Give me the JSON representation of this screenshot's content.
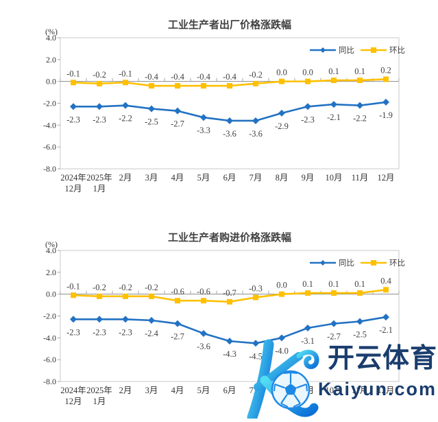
{
  "style": {
    "series_tongbi_color": "#2272C3",
    "series_huanbi_color": "#FFC000",
    "text_color": "#404040",
    "axis_color": "#A6A6A6",
    "zero_line_color": "#8C8C8C",
    "border_color": "#C9C9C9"
  },
  "watermark": {
    "brand_cn": "开云体育",
    "brand_domain": "Kaiyun.com",
    "navy": "#1A3D6D",
    "logo_cyan_light": "#53DDF2",
    "logo_blue_dark": "#0B6FD8",
    "ball_outline": "#1E88E5"
  },
  "chart_data": [
    {
      "type": "line",
      "title": "工业生产者出厂价格涨跌幅",
      "unit_label": "(%)",
      "xlabel": "",
      "ylabel": "%",
      "ylim": [
        -8.0,
        4.0
      ],
      "yticks": [
        "4.0",
        "2.0",
        "0.0",
        "-2.0",
        "-4.0",
        "-6.0",
        "-8.0"
      ],
      "grid": false,
      "legend_position": "top-right-inside",
      "categories": [
        "2024年12月",
        "2025年1月",
        "2月",
        "3月",
        "4月",
        "5月",
        "6月",
        "7月",
        "8月",
        "9月",
        "10月",
        "11月",
        "12月"
      ],
      "xtick_lines": [
        [
          "2024年",
          "12月"
        ],
        [
          "2025年",
          "1月"
        ],
        [
          "2月"
        ],
        [
          "3月"
        ],
        [
          "4月"
        ],
        [
          "5月"
        ],
        [
          "6月"
        ],
        [
          "7月"
        ],
        [
          "8月"
        ],
        [
          "9月"
        ],
        [
          "10月"
        ],
        [
          "11月"
        ],
        [
          "12月"
        ]
      ],
      "series": [
        {
          "key": "tongbi",
          "name": "同比",
          "marker": "diamond",
          "label_pos": "below",
          "color": "#2272C3",
          "values": [
            -2.3,
            -2.3,
            -2.2,
            -2.5,
            -2.7,
            -3.3,
            -3.6,
            -3.6,
            -2.9,
            -2.3,
            -2.1,
            -2.2,
            -1.9
          ]
        },
        {
          "key": "huanbi",
          "name": "环比",
          "marker": "square",
          "label_pos": "above",
          "color": "#FFC000",
          "values": [
            -0.1,
            -0.2,
            -0.1,
            -0.4,
            -0.4,
            -0.4,
            -0.4,
            -0.2,
            0.0,
            0.0,
            0.1,
            0.1,
            0.2
          ]
        }
      ]
    },
    {
      "type": "line",
      "title": "工业生产者购进价格涨跌幅",
      "unit_label": "(%)",
      "xlabel": "",
      "ylabel": "%",
      "ylim": [
        -8.0,
        4.0
      ],
      "yticks": [
        "4.0",
        "2.0",
        "0.0",
        "-2.0",
        "-4.0",
        "-6.0",
        "-8.0"
      ],
      "grid": false,
      "legend_position": "top-right-inside",
      "categories": [
        "2024年12月",
        "2025年1月",
        "2月",
        "3月",
        "4月",
        "5月",
        "6月",
        "7月",
        "8月",
        "9月",
        "10月",
        "11月",
        "12月"
      ],
      "xtick_lines": [
        [
          "2024年",
          "12月"
        ],
        [
          "2025年",
          "1月"
        ],
        [
          "2月"
        ],
        [
          "3月"
        ],
        [
          "4月"
        ],
        [
          "5月"
        ],
        [
          "6月"
        ],
        [
          "7月"
        ],
        [
          "8月"
        ],
        [
          "9月"
        ],
        [
          "10月"
        ],
        [
          "11月"
        ],
        [
          "12月"
        ]
      ],
      "series": [
        {
          "key": "tongbi",
          "name": "同比",
          "marker": "diamond",
          "label_pos": "below",
          "color": "#2272C3",
          "values": [
            -2.3,
            -2.3,
            -2.3,
            -2.4,
            -2.7,
            -3.6,
            -4.3,
            -4.5,
            -4.0,
            -3.1,
            -2.7,
            -2.5,
            -2.1
          ]
        },
        {
          "key": "huanbi",
          "name": "环比",
          "marker": "square",
          "label_pos": "above",
          "color": "#FFC000",
          "values": [
            -0.1,
            -0.2,
            -0.2,
            -0.2,
            -0.6,
            -0.6,
            -0.7,
            -0.3,
            0.0,
            0.1,
            0.1,
            0.1,
            0.4
          ]
        }
      ]
    }
  ]
}
